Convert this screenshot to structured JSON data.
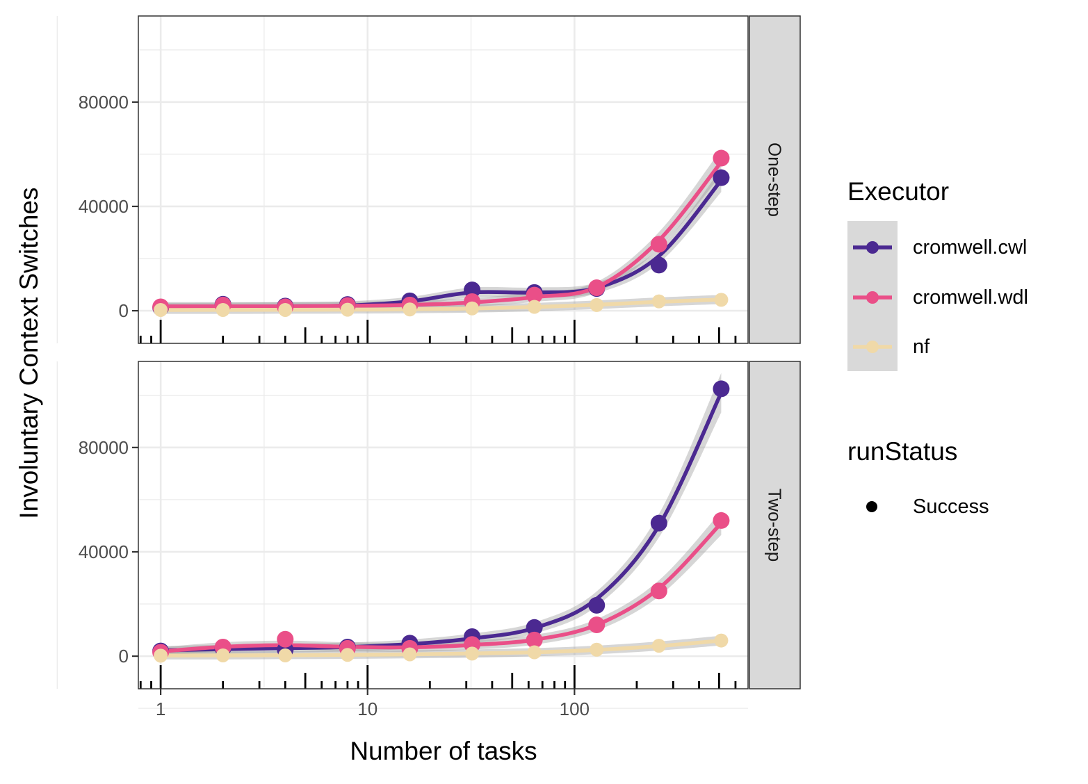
{
  "chart_data": {
    "type": "line",
    "xlabel": "Number of tasks",
    "ylabel": "Involuntary Context Switches",
    "x_scale": "log10",
    "xlim": [
      0.78,
      690
    ],
    "ylim": [
      -12500,
      113000
    ],
    "x_ticks": [
      1,
      10,
      100
    ],
    "x_tick_labels": [
      "1",
      "10",
      "100"
    ],
    "y_ticks": [
      0,
      40000,
      80000
    ],
    "y_tick_labels": [
      "0",
      "40000",
      "80000"
    ],
    "grid": true,
    "rug": true,
    "rug_x": [
      0.8,
      0.9,
      1,
      2,
      3,
      4,
      5,
      6,
      7,
      8,
      9,
      10,
      20,
      30,
      40,
      50,
      60,
      70,
      80,
      90,
      100,
      200,
      300,
      400,
      500,
      600
    ],
    "legend_position": "right",
    "legend": {
      "executor_title": "Executor",
      "status_title": "runStatus",
      "status_items": [
        "Success"
      ]
    },
    "panels": [
      {
        "strip": "One-step",
        "series": [
          {
            "name": "cromwell.cwl",
            "color": "#4b2991",
            "x": [
              1,
              2,
              4,
              8,
              16,
              32,
              64,
              128,
              256,
              512
            ],
            "y": [
              1200,
              2500,
              1800,
              2400,
              3800,
              8000,
              7000,
              8500,
              17500,
              51000
            ],
            "fit": [
              1400,
              1500,
              1700,
              2000,
              3600,
              7000,
              7000,
              8800,
              21000,
              50000
            ]
          },
          {
            "name": "cromwell.wdl",
            "color": "#ea4f88",
            "x": [
              1,
              2,
              4,
              8,
              16,
              32,
              64,
              128,
              256,
              512
            ],
            "y": [
              1500,
              2200,
              1500,
              2000,
              2200,
              3500,
              6000,
              8800,
              25500,
              58500
            ],
            "fit": [
              1700,
              1700,
              1700,
              1900,
              2200,
              3200,
              5200,
              9000,
              27000,
              57000
            ]
          },
          {
            "name": "nf",
            "color": "#f0d9a8",
            "x": [
              1,
              2,
              4,
              8,
              16,
              32,
              64,
              128,
              256,
              512
            ],
            "y": [
              300,
              300,
              300,
              400,
              500,
              900,
              1500,
              2200,
              3600,
              4200
            ],
            "fit": [
              300,
              320,
              360,
              420,
              550,
              850,
              1400,
              2300,
              3400,
              4300
            ]
          }
        ]
      },
      {
        "strip": "Two-step",
        "series": [
          {
            "name": "cromwell.cwl",
            "color": "#4b2991",
            "x": [
              1,
              2,
              4,
              8,
              16,
              32,
              64,
              128,
              256,
              512
            ],
            "y": [
              2000,
              3000,
              2500,
              3500,
              5000,
              7500,
              11000,
              19500,
              51000,
              102500
            ],
            "fit": [
              2200,
              2700,
              3100,
              3500,
              4600,
              6800,
              10800,
              22000,
              50000,
              101000
            ]
          },
          {
            "name": "cromwell.wdl",
            "color": "#ea4f88",
            "x": [
              1,
              2,
              4,
              8,
              16,
              32,
              64,
              128,
              256,
              512
            ],
            "y": [
              1500,
              3500,
              6500,
              3000,
              3000,
              4500,
              6200,
              12000,
              25000,
              52000
            ],
            "fit": [
              1800,
              3600,
              4200,
              3600,
              3400,
              4300,
              6300,
              12000,
              26000,
              51000
            ]
          },
          {
            "name": "nf",
            "color": "#f0d9a8",
            "x": [
              1,
              2,
              4,
              8,
              16,
              32,
              64,
              128,
              256,
              512
            ],
            "y": [
              200,
              300,
              300,
              500,
              700,
              1000,
              1500,
              2500,
              4000,
              6000
            ],
            "fit": [
              250,
              300,
              380,
              500,
              680,
              1000,
              1500,
              2400,
              3900,
              6000
            ]
          }
        ]
      }
    ]
  }
}
